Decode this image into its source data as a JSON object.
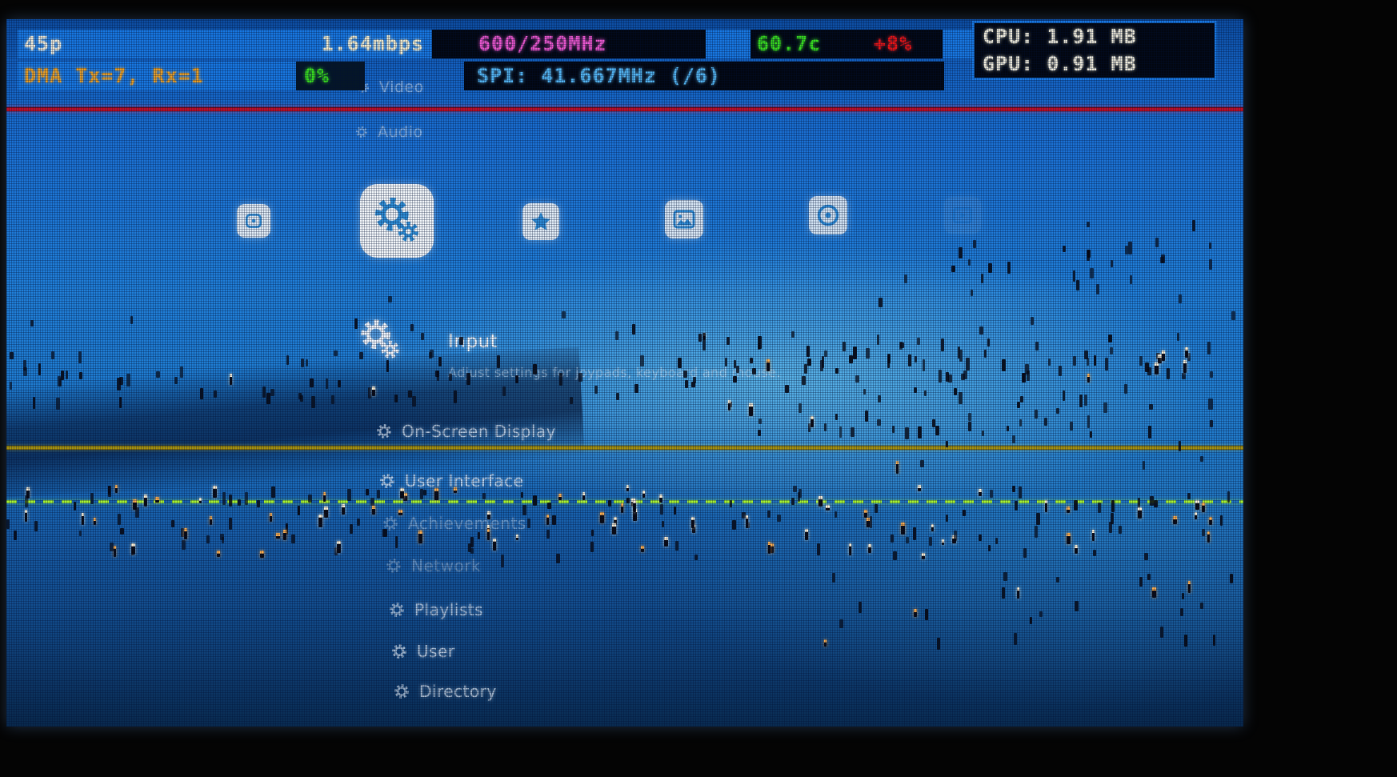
{
  "stats": {
    "fps": "45p",
    "bitrate": "1.64mbps",
    "clock": "600/250MHz",
    "temperature": "60.7c",
    "cpu_usage": "+8%",
    "cpu_mem": "CPU: 1.91 MB",
    "gpu_mem": "GPU: 0.91 MB",
    "dma": "DMA Tx=7, Rx=1",
    "dma_load": "0%",
    "spi": "SPI: 41.667MHz (/6)"
  },
  "menu": {
    "categories": [
      {
        "icon": "main-menu-icon",
        "selected": false
      },
      {
        "icon": "settings-icon",
        "selected": true
      },
      {
        "icon": "favorites-star-icon",
        "selected": false
      },
      {
        "icon": "images-icon",
        "selected": false
      },
      {
        "icon": "music-icon",
        "selected": false
      },
      {
        "icon": "videos-icon",
        "selected": false
      }
    ],
    "items_above": [
      {
        "label": "Video"
      },
      {
        "label": "Audio"
      }
    ],
    "selected_item": {
      "label": "Input",
      "sublabel": "Adjust settings for joypads, keyboard and mouse."
    },
    "items_below": [
      {
        "label": "On-Screen Display"
      },
      {
        "label": "User Interface"
      },
      {
        "label": "Achievements"
      },
      {
        "label": "Network"
      },
      {
        "label": "Playlists"
      },
      {
        "label": "User"
      },
      {
        "label": "Directory"
      }
    ]
  },
  "colors": {
    "accent_blue": "#1878e2",
    "stat_magenta": "#ee58cf",
    "stat_green": "#3ade1e",
    "stat_red": "#ef1414",
    "stat_orange": "#eda226",
    "stat_cyan": "#54b6f2",
    "line_red": "#ff1530",
    "line_yellow": "#e0c614",
    "line_green": "#a8f632"
  }
}
